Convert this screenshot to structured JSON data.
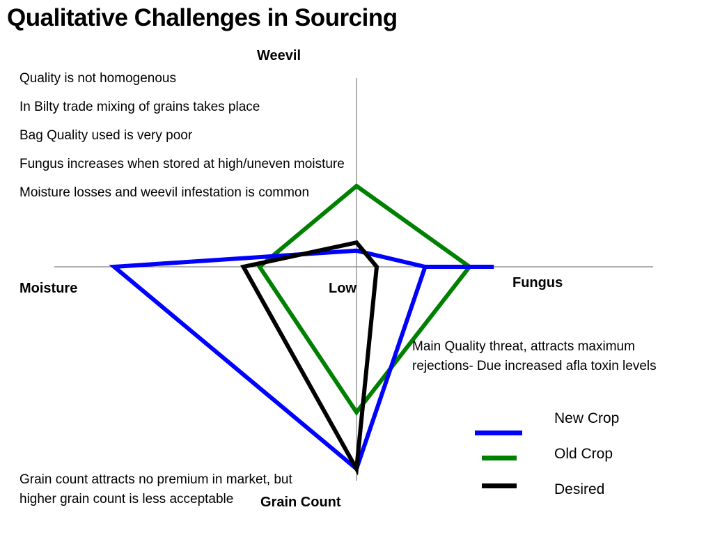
{
  "slide": {
    "title": "Qualitative Challenges in Sourcing"
  },
  "notes": [
    "Quality is not homogenous",
    "In Bilty trade mixing of grains takes place",
    "Bag Quality used is very poor",
    "Fungus increases when stored at high/uneven moisture",
    "Moisture losses and weevil infestation is common"
  ],
  "annotations": {
    "fungus_note_line1": "Main Quality threat, attracts maximum",
    "fungus_note_line2": "rejections- Due increased afla toxin levels",
    "grain_note_line1": "Grain count attracts no premium in market, but",
    "grain_note_line2": "higher grain count is less acceptable"
  },
  "chart_data": {
    "type": "radar",
    "axes": [
      "Weevil",
      "Fungus",
      "Grain Count",
      "Moisture"
    ],
    "center_label": "Low",
    "series": [
      {
        "name": "New Crop",
        "color": "#0000ff",
        "values": [
          0.2,
          0.85,
          2.5,
          3.0
        ]
      },
      {
        "name": "Old Crop",
        "color": "#008000",
        "values": [
          1.0,
          1.4,
          1.8,
          1.2
        ]
      },
      {
        "name": "Desired",
        "color": "#000000",
        "values": [
          0.3,
          0.25,
          2.5,
          1.4
        ]
      }
    ],
    "new_crop_fungus_extension": 1.7,
    "legend_position": "bottom-right"
  }
}
